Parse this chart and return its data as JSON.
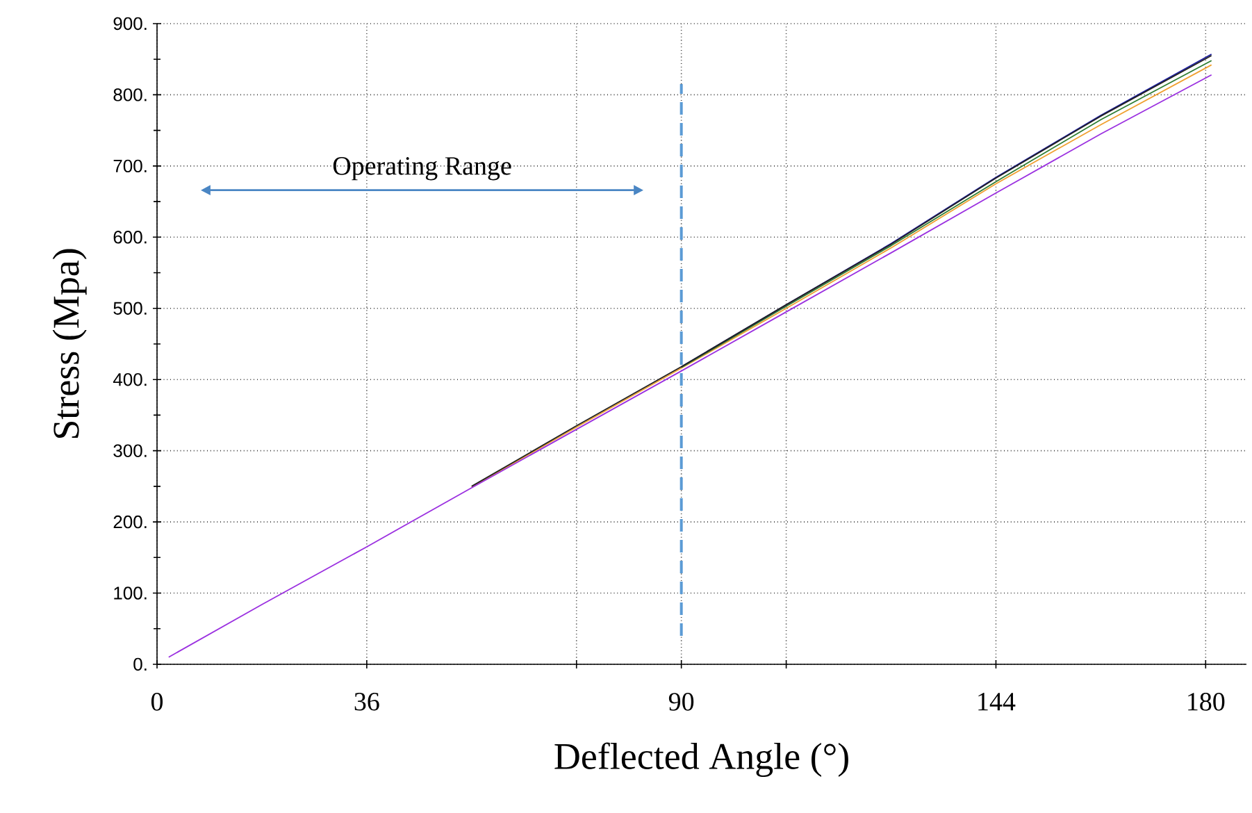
{
  "chart_data": {
    "type": "line",
    "xlabel": "Deflected Angle (°)",
    "ylabel": "Stress (Mpa)",
    "xlim": [
      0,
      187
    ],
    "ylim": [
      0,
      900
    ],
    "xticks": [
      0,
      36,
      {
        "value": 72,
        "label": null
      },
      90,
      {
        "value": 108,
        "label": null
      },
      144,
      180
    ],
    "yticks": [
      {
        "value": 0,
        "label": "0."
      },
      {
        "value": 100,
        "label": "100."
      },
      {
        "value": 200,
        "label": "200."
      },
      {
        "value": 300,
        "label": "300."
      },
      {
        "value": 400,
        "label": "400."
      },
      {
        "value": 500,
        "label": "500."
      },
      {
        "value": 600,
        "label": "600."
      },
      {
        "value": 700,
        "label": "700."
      },
      {
        "value": 800,
        "label": "800."
      },
      {
        "value": 900,
        "label": "900."
      }
    ],
    "grid": true,
    "marker": "none",
    "line_style": "solid",
    "series": [
      {
        "color": "#f0a030",
        "x": [
          54,
          72,
          90,
          108,
          126,
          144,
          162,
          181
        ],
        "values": [
          249,
          333,
          416,
          500,
          585,
          675,
          758,
          842
        ]
      },
      {
        "color": "#2e7d32",
        "x": [
          90,
          108,
          126,
          144,
          162,
          181
        ],
        "values": [
          417,
          503,
          588,
          678,
          765,
          848
        ]
      },
      {
        "color": "#1a1aa0",
        "x": [
          90,
          108,
          126,
          144,
          162,
          181
        ],
        "values": [
          418,
          505,
          591,
          684,
          771,
          857
        ]
      },
      {
        "color": "#222222",
        "x": [
          54,
          72,
          90,
          108,
          126,
          144,
          162,
          181
        ],
        "values": [
          250,
          335,
          418,
          505,
          590,
          683,
          770,
          855
        ]
      },
      {
        "color": "#9b30e0",
        "x": [
          2,
          18,
          36,
          54,
          72,
          90,
          108,
          126,
          144,
          162,
          181
        ],
        "values": [
          10,
          84,
          165,
          248,
          330,
          412,
          495,
          578,
          662,
          745,
          828
        ]
      }
    ],
    "ref_lines": [
      {
        "axis": "x",
        "value": 90,
        "color": "#5b9bd5",
        "line_style": "dashed"
      }
    ],
    "annotations": [
      "Operating Range"
    ]
  }
}
